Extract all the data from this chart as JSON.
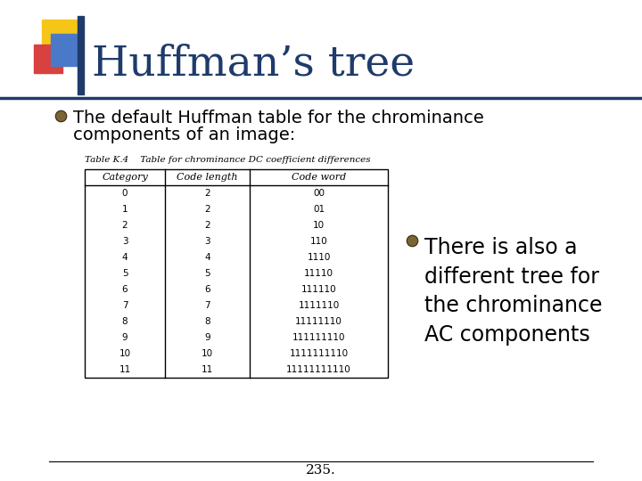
{
  "title": "Huffman’s tree",
  "title_color": "#1F3B6B",
  "title_fontsize": 34,
  "bullet1_line1": "The default Huffman table for the chrominance",
  "bullet1_line2": "components of an image:",
  "bullet2": "There is also a\ndifferent tree for\nthe chrominance\nAC components",
  "bullet_fontsize": 14,
  "bullet2_fontsize": 17,
  "table_caption": "Table K.4    Table for chrominance DC coefficient differences",
  "table_caption_fontsize": 7.5,
  "table_headers": [
    "Category",
    "Code length",
    "Code word"
  ],
  "table_rows": [
    [
      "0",
      "2",
      "00"
    ],
    [
      "1",
      "2",
      "01"
    ],
    [
      "2",
      "2",
      "10"
    ],
    [
      "3",
      "3",
      "110"
    ],
    [
      "4",
      "4",
      "1110"
    ],
    [
      "5",
      "5",
      "11110"
    ],
    [
      "6",
      "6",
      "111110"
    ],
    [
      "7",
      "7",
      "1111110"
    ],
    [
      "8",
      "8",
      "11111110"
    ],
    [
      "9",
      "9",
      "111111110"
    ],
    [
      "10",
      "10",
      "1111111110"
    ],
    [
      "11",
      "11",
      "11111111110"
    ]
  ],
  "page_number": "235.",
  "background_color": "#FFFFFF",
  "title_bar_color": "#1F3B6B",
  "deco_yellow": "#F5C518",
  "deco_red": "#D94040",
  "deco_blue": "#4A7AC7",
  "deco_navy": "#1F3B6B",
  "bullet_dot_color": "#7A6535",
  "table_header_font": "DejaVu Serif",
  "table_data_font": "Courier New",
  "table_fontsize": 7.5,
  "table_header_fontsize": 8,
  "table_border_color": "#000000"
}
